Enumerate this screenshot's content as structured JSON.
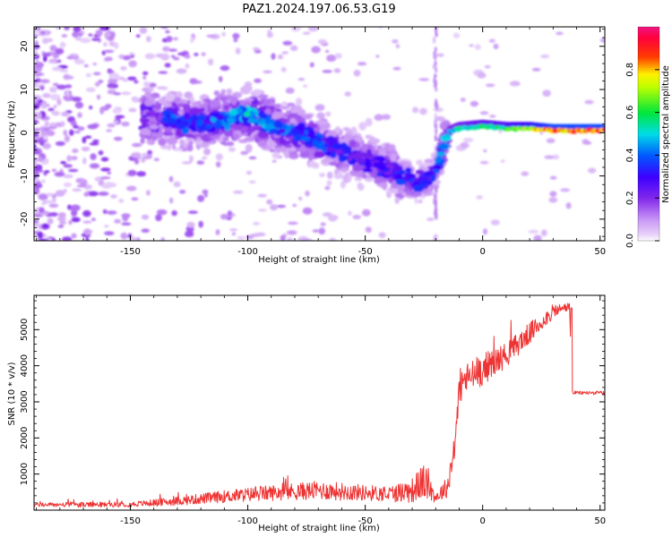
{
  "title": "PAZ1.2024.197.06.53.G19",
  "chart_data": [
    {
      "type": "heatmap",
      "xlabel": "Height of straight line (km)",
      "ylabel": "Frequency (Hz)",
      "xlim": [
        -191,
        52
      ],
      "ylim": [
        -25,
        24.5
      ],
      "xticks": [
        -150,
        -100,
        -50,
        0,
        50
      ],
      "yticks": [
        -20,
        -10,
        0,
        10,
        20
      ],
      "colorbar": {
        "label": "Normalized spectral amplitude",
        "range": [
          0,
          1
        ],
        "ticks": [
          0.0,
          0.2,
          0.4,
          0.6,
          0.8
        ],
        "colormap": "gist_rainbow (white at 0 → purple → blue → cyan → green → yellow → red → magenta)"
      },
      "ridge": {
        "description": "dominant frequency ridge (approximate)",
        "x": [
          -140,
          -125,
          -110,
          -100,
          -90,
          -80,
          -70,
          -60,
          -50,
          -40,
          -33,
          -27,
          -20,
          -15,
          -10,
          0,
          10,
          20,
          30,
          40,
          52
        ],
        "y": [
          4,
          2,
          3,
          4,
          2,
          0,
          -2,
          -4,
          -6,
          -8,
          -11,
          -12,
          -9,
          0,
          1,
          1.5,
          1,
          1,
          0.5,
          0.5,
          0.5
        ],
        "amplitude": [
          0.35,
          0.3,
          0.35,
          0.4,
          0.35,
          0.3,
          0.3,
          0.25,
          0.25,
          0.25,
          0.3,
          0.25,
          0.3,
          0.4,
          0.5,
          0.55,
          0.6,
          0.7,
          0.85,
          0.85,
          0.85
        ]
      }
    },
    {
      "type": "line",
      "xlabel": "Height of straight line (km)",
      "ylabel": "SNR (10 * v/v)",
      "xlim": [
        -191,
        52
      ],
      "ylim": [
        0,
        5950
      ],
      "xticks": [
        -150,
        -100,
        -50,
        0,
        50
      ],
      "yticks": [
        1000,
        2000,
        3000,
        4000,
        5000
      ],
      "color": "#ee3333",
      "series": [
        {
          "description": "SNR envelope (approximate)",
          "x": [
            -191,
            -170,
            -150,
            -130,
            -110,
            -90,
            -70,
            -60,
            -50,
            -40,
            -30,
            -25,
            -20,
            -15,
            -12,
            -10,
            -8,
            -5,
            0,
            10,
            20,
            30,
            37,
            38,
            45,
            52
          ],
          "y": [
            150,
            150,
            160,
            250,
            380,
            480,
            550,
            520,
            480,
            450,
            550,
            800,
            350,
            650,
            1700,
            3300,
            3600,
            3700,
            3900,
            4300,
            4900,
            5500,
            5650,
            3250,
            3250,
            3250
          ],
          "noise": [
            60,
            70,
            70,
            120,
            170,
            220,
            260,
            250,
            220,
            220,
            350,
            500,
            150,
            300,
            400,
            450,
            450,
            450,
            450,
            350,
            300,
            200,
            100,
            50,
            50,
            50
          ]
        }
      ]
    }
  ]
}
